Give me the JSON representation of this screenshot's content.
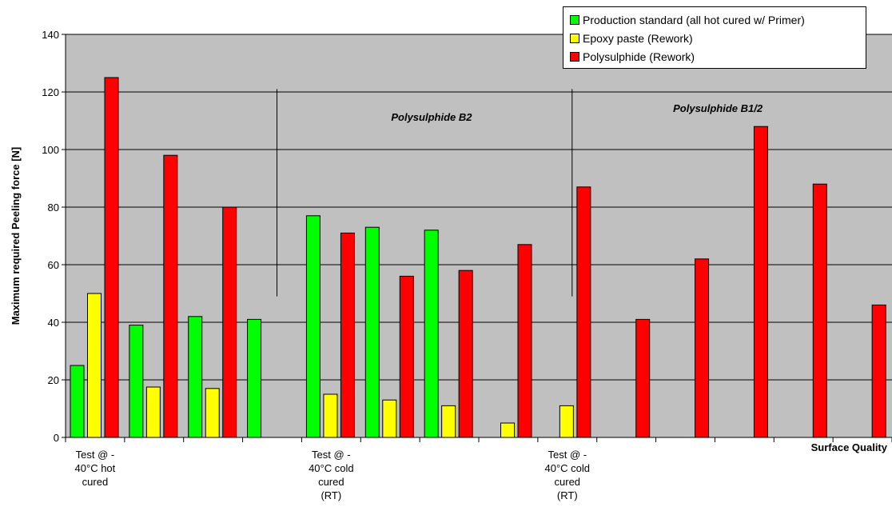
{
  "chart_data": {
    "type": "bar",
    "title": "",
    "ylabel": "Maximum required Peeling force [N]",
    "xlabel": "Surface Quality",
    "ylim": [
      0,
      140
    ],
    "yticks": [
      0,
      20,
      40,
      60,
      80,
      100,
      120,
      140
    ],
    "grid": true,
    "legend_position": "top-right",
    "background": "#c0c0c0",
    "categories": [
      "Test @ -\n40°C hot\ncured",
      "",
      "",
      "",
      "Test @ -\n40°C cold\ncured\n(RT)",
      "",
      "",
      "",
      "Test @ -\n40°C cold\ncured\n(RT)",
      "",
      "",
      "",
      "",
      ""
    ],
    "series": [
      {
        "name": "Production standard (all hot cured w/ Primer)",
        "color": "#00ff00",
        "values": [
          25,
          39,
          42,
          41,
          77,
          73,
          72,
          null,
          null,
          null,
          null,
          null,
          null,
          null
        ]
      },
      {
        "name": "Epoxy paste (Rework)",
        "color": "#ffff00",
        "values": [
          50,
          17.5,
          17,
          null,
          15,
          13,
          11,
          5,
          11,
          null,
          null,
          null,
          null,
          null
        ]
      },
      {
        "name": "Polysulphide (Rework)",
        "color": "#ff0000",
        "values": [
          125,
          98,
          80,
          null,
          71,
          56,
          58,
          67,
          87,
          41,
          62,
          108,
          88,
          46
        ]
      }
    ],
    "annotations": [
      "Polysulphide B2",
      "Polysulphide B1/2"
    ]
  }
}
